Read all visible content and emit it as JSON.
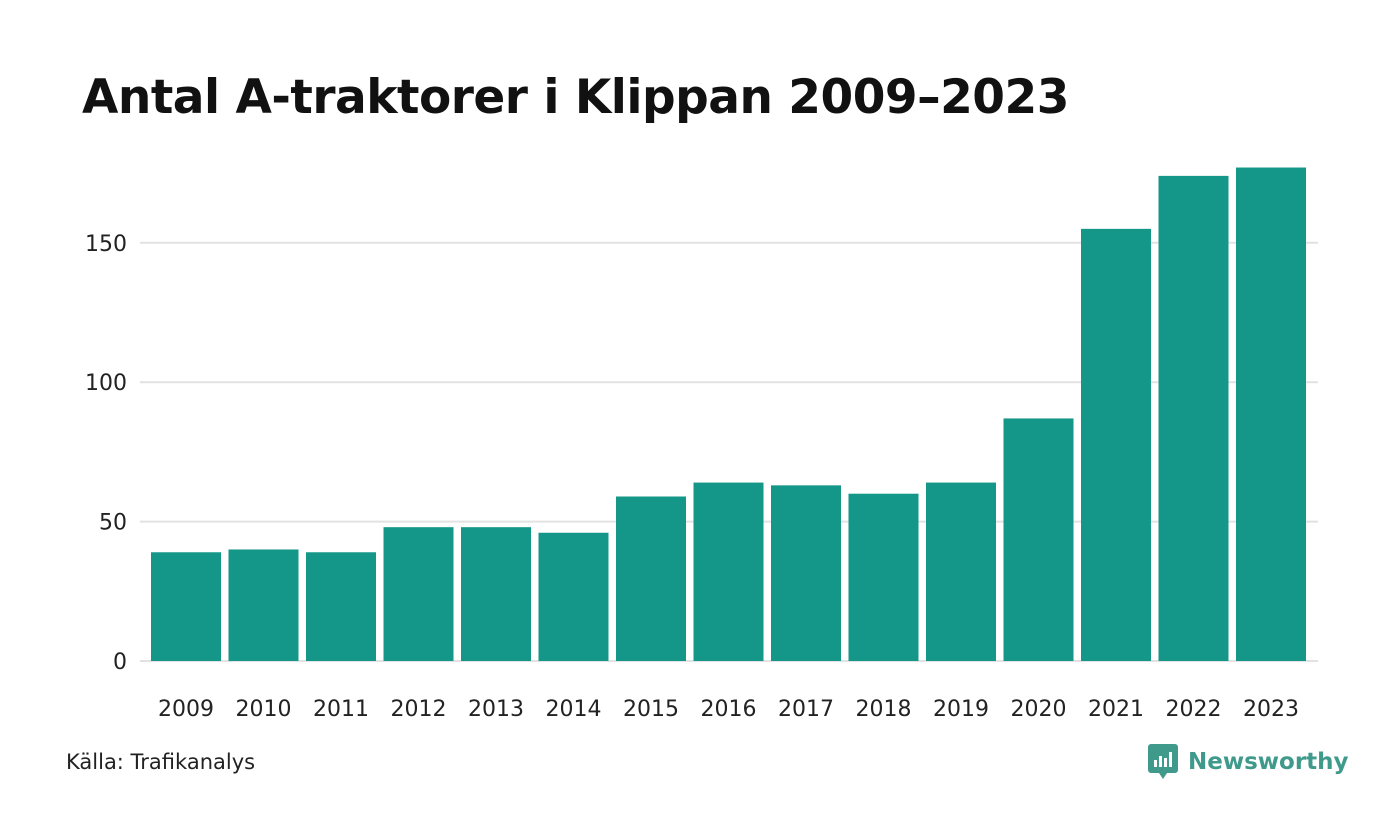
{
  "title": "Antal A-traktorer i Klippan 2009–2023",
  "source": "Källa: Trafikanalys",
  "brand": {
    "name": "Newsworthy",
    "logo_icon": "newsworthy-chart-bubble-icon",
    "color": "#3f9a8c"
  },
  "colors": {
    "bar": "#149688",
    "grid": "#e2e2e2",
    "axis_text": "#222222"
  },
  "chart_data": {
    "type": "bar",
    "title": "Antal A-traktorer i Klippan 2009–2023",
    "xlabel": "",
    "ylabel": "",
    "categories": [
      "2009",
      "2010",
      "2011",
      "2012",
      "2013",
      "2014",
      "2015",
      "2016",
      "2017",
      "2018",
      "2019",
      "2020",
      "2021",
      "2022",
      "2023"
    ],
    "values": [
      39,
      40,
      39,
      48,
      48,
      46,
      59,
      64,
      63,
      60,
      64,
      87,
      155,
      174,
      177
    ],
    "yticks": [
      0,
      50,
      100,
      150
    ],
    "ytick_labels": [
      "0",
      "50",
      "100",
      "150"
    ],
    "ylim": [
      0,
      180
    ],
    "grid": true,
    "legend": "none"
  }
}
